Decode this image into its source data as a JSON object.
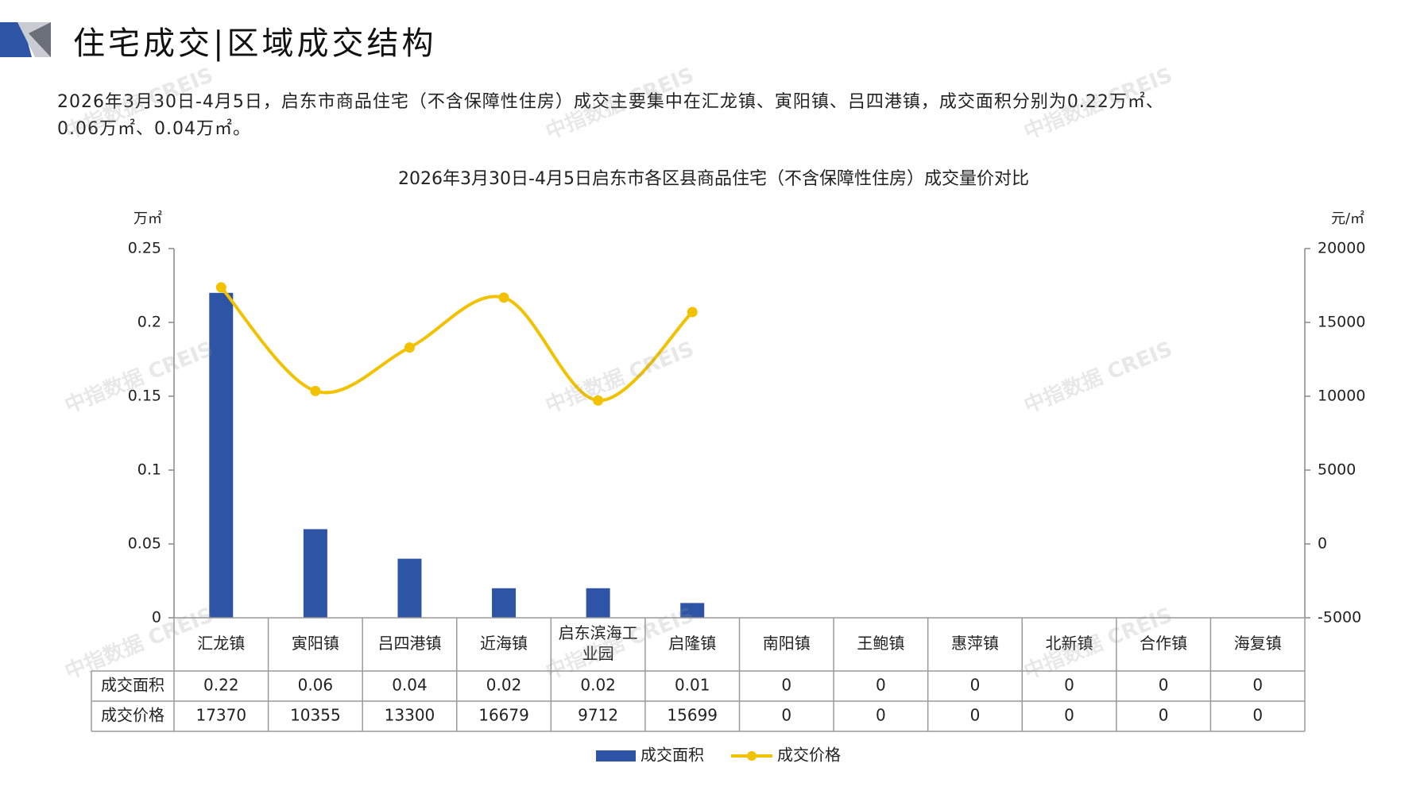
{
  "header": {
    "title": "住宅成交|区域成交结构"
  },
  "summary": {
    "text_line1": "2026年3月30日-4月5日，启东市商品住宅（不含保障性住房）成交主要集中在汇龙镇、寅阳镇、吕四港镇，成交面积分别为0.22万㎡、",
    "text_line2": "0.06万㎡、0.04万㎡。"
  },
  "watermark": {
    "text": "中指数据 CREIS"
  },
  "colors": {
    "bar": "#2E54A6",
    "line": "#F2C200",
    "axis": "#888888",
    "table_border": "#9a9a9a"
  },
  "chart_data": {
    "type": "bar",
    "title": "2026年3月30日-4月5日启东市各区县商品住宅（不含保障性住房）成交量价对比",
    "y_left_unit": "万㎡",
    "y_right_unit": "元/㎡",
    "y_left_range": [
      0,
      0.25
    ],
    "y_left_ticks": [
      "0.25",
      "0.2",
      "0.15",
      "0.1",
      "0.05",
      "0"
    ],
    "y_right_range": [
      -5000,
      20000
    ],
    "y_right_ticks": [
      "20000",
      "15000",
      "10000",
      "5000",
      "0",
      "-5000"
    ],
    "categories": [
      "汇龙镇",
      "寅阳镇",
      "吕四港镇",
      "近海镇",
      "启东滨海工业园",
      "启隆镇",
      "南阳镇",
      "王鲍镇",
      "惠萍镇",
      "北新镇",
      "合作镇",
      "海复镇"
    ],
    "category_lines": [
      [
        "汇龙镇"
      ],
      [
        "寅阳镇"
      ],
      [
        "吕四港镇"
      ],
      [
        "近海镇"
      ],
      [
        "启东滨海工",
        "业园"
      ],
      [
        "启隆镇"
      ],
      [
        "南阳镇"
      ],
      [
        "王鲍镇"
      ],
      [
        "惠萍镇"
      ],
      [
        "北新镇"
      ],
      [
        "合作镇"
      ],
      [
        "海复镇"
      ]
    ],
    "series": [
      {
        "name": "成交面积",
        "type": "bar",
        "axis": "left",
        "values": [
          0.22,
          0.06,
          0.04,
          0.02,
          0.02,
          0.01,
          0,
          0,
          0,
          0,
          0,
          0
        ],
        "labels": [
          "0.22",
          "0.06",
          "0.04",
          "0.02",
          "0.02",
          "0.01",
          "0",
          "0",
          "0",
          "0",
          "0",
          "0"
        ]
      },
      {
        "name": "成交价格",
        "type": "line",
        "axis": "right",
        "values": [
          17370,
          10355,
          13300,
          16679,
          9712,
          15699,
          0,
          0,
          0,
          0,
          0,
          0
        ],
        "labels": [
          "17370",
          "10355",
          "13300",
          "16679",
          "9712",
          "15699",
          "0",
          "0",
          "0",
          "0",
          "0",
          "0"
        ],
        "plotted_count": 6
      }
    ],
    "legend_position": "bottom",
    "data_table": true
  }
}
